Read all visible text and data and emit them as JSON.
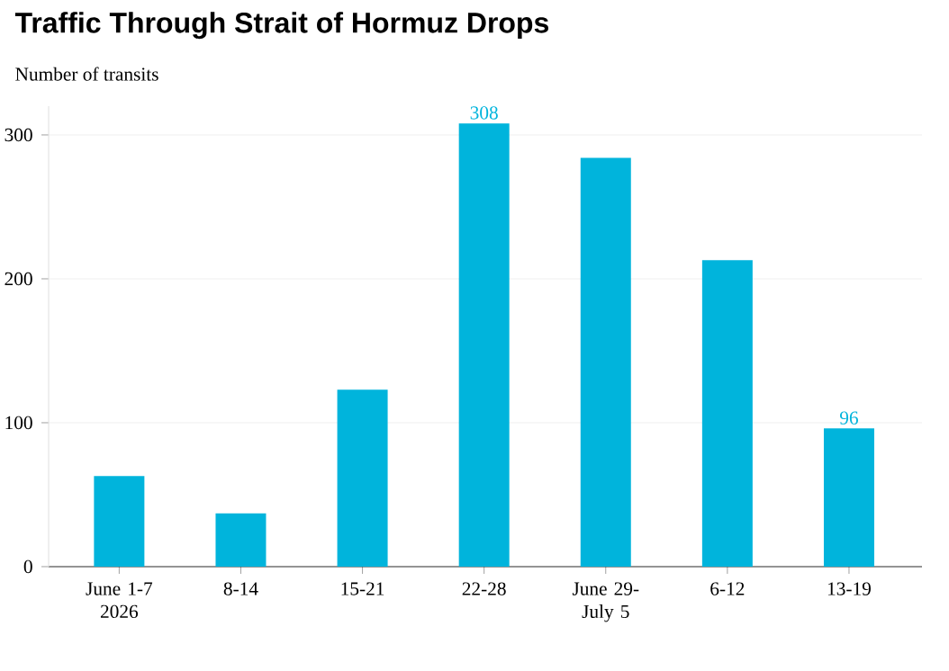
{
  "chart_data": {
    "type": "bar",
    "title": "Traffic Through Strait of Hormuz Drops",
    "ylabel": "Number of transits",
    "categories": [
      "June 1-7 2026",
      "8-14",
      "15-21",
      "22-28",
      "June 29- July 5",
      "6-12",
      "13-19"
    ],
    "values": [
      63,
      37,
      123,
      308,
      284,
      213,
      96
    ],
    "value_labels": [
      null,
      null,
      null,
      "308",
      null,
      null,
      "96"
    ],
    "color": "#00b4dc",
    "ylim": [
      0,
      320
    ],
    "yticks": [
      0,
      100,
      200,
      300
    ],
    "grid": "y"
  }
}
